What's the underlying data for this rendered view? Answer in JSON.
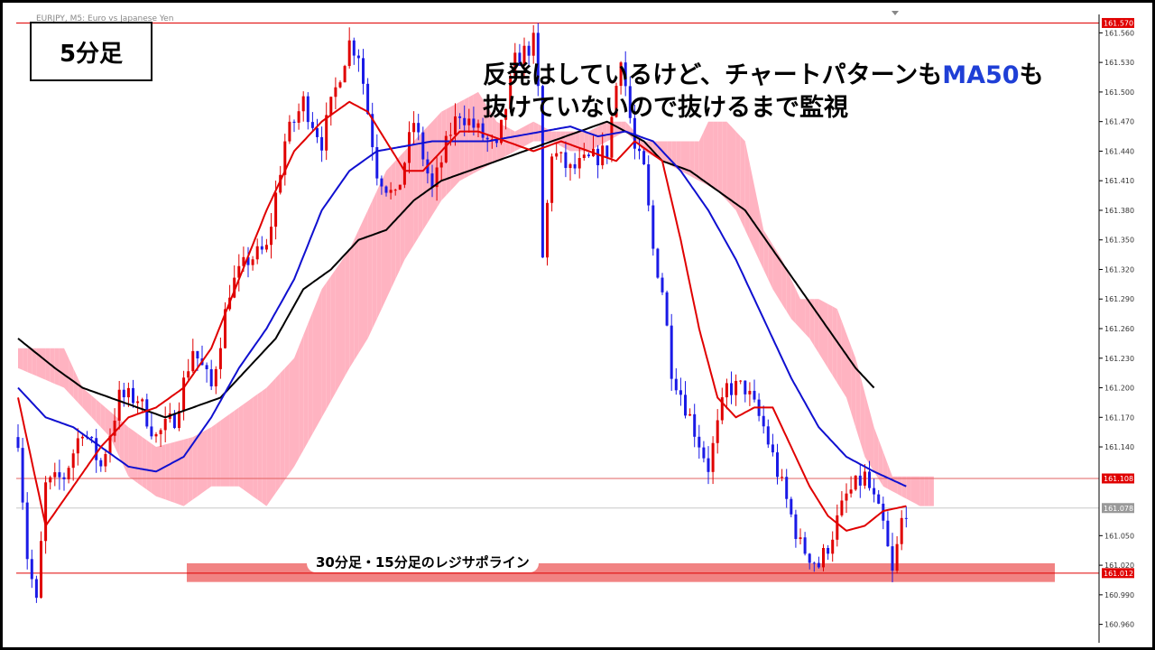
{
  "timeframe_label": "5分足",
  "symbol_label": "EURJPY, M5: Euro vs Japanese Yen",
  "headline": {
    "line1_before": "反発はしているけど、チャートパターンも",
    "line1_highlight": "MA50",
    "line1_after": "も",
    "line2": "抜けていないので抜けるまで監視"
  },
  "zone_label": "30分足・15分足のレジサポライン",
  "colors": {
    "bull_candle": "#e00000",
    "bear_candle": "#1a1ae6",
    "ma_short": "#e00000",
    "ma_mid": "#1010d0",
    "ma_long": "#000000",
    "cloud_bull": "#ffb3c1",
    "cloud_bear": "#a8e8ec",
    "zone": "#f07575",
    "headline_highlight": "#1f3fd6"
  },
  "chart_data": {
    "type": "candlestick",
    "y_axis": {
      "min": 160.945,
      "max": 161.575,
      "ticks": [
        161.56,
        161.53,
        161.5,
        161.47,
        161.44,
        161.41,
        161.38,
        161.35,
        161.32,
        161.29,
        161.26,
        161.23,
        161.2,
        161.17,
        161.14,
        161.05,
        161.02,
        160.99,
        160.96
      ],
      "tick_decimals": 3
    },
    "price_levels": [
      {
        "label": "161.570",
        "value": 161.57,
        "tag_color": "#e00000",
        "line_color": "#e00000"
      },
      {
        "label": "161.108",
        "value": 161.108,
        "tag_color": "#e00000",
        "line_color": "#e06060"
      },
      {
        "label": "161.078",
        "value": 161.078,
        "tag_color": "#999999",
        "line_color": "#c8c8c8"
      },
      {
        "label": "161.012",
        "value": 161.012,
        "tag_color": "#e00000",
        "line_color": "#e00000"
      }
    ],
    "support_zone": {
      "low": 161.003,
      "high": 161.022
    },
    "candle_anchors": [
      [
        0,
        161.15
      ],
      [
        2,
        161.03
      ],
      [
        4,
        160.98
      ],
      [
        6,
        161.1
      ],
      [
        10,
        161.11
      ],
      [
        14,
        161.16
      ],
      [
        18,
        161.12
      ],
      [
        22,
        161.19
      ],
      [
        26,
        161.19
      ],
      [
        30,
        161.15
      ],
      [
        34,
        161.17
      ],
      [
        38,
        161.24
      ],
      [
        42,
        161.2
      ],
      [
        46,
        161.3
      ],
      [
        50,
        161.33
      ],
      [
        54,
        161.34
      ],
      [
        58,
        161.45
      ],
      [
        62,
        161.49
      ],
      [
        66,
        161.45
      ],
      [
        70,
        161.52
      ],
      [
        72,
        161.55
      ],
      [
        74,
        161.54
      ],
      [
        76,
        161.48
      ],
      [
        78,
        161.42
      ],
      [
        82,
        161.39
      ],
      [
        86,
        161.47
      ],
      [
        90,
        161.4
      ],
      [
        94,
        161.46
      ],
      [
        96,
        161.48
      ],
      [
        100,
        161.46
      ],
      [
        104,
        161.44
      ],
      [
        108,
        161.53
      ],
      [
        112,
        161.55
      ],
      [
        113,
        161.5
      ],
      [
        114,
        161.33
      ],
      [
        116,
        161.44
      ],
      [
        120,
        161.42
      ],
      [
        124,
        161.43
      ],
      [
        128,
        161.44
      ],
      [
        131,
        161.54
      ],
      [
        134,
        161.44
      ],
      [
        136,
        161.42
      ],
      [
        138,
        161.34
      ],
      [
        140,
        161.3
      ],
      [
        142,
        161.22
      ],
      [
        146,
        161.17
      ],
      [
        150,
        161.12
      ],
      [
        154,
        161.2
      ],
      [
        158,
        161.2
      ],
      [
        162,
        161.16
      ],
      [
        166,
        161.1
      ],
      [
        170,
        161.04
      ],
      [
        174,
        161.02
      ],
      [
        176,
        161.04
      ],
      [
        180,
        161.09
      ],
      [
        184,
        161.11
      ],
      [
        188,
        161.06
      ],
      [
        190,
        161.01
      ],
      [
        192,
        161.065
      ],
      [
        193,
        161.078
      ]
    ],
    "ma_short": [
      [
        0,
        161.19
      ],
      [
        6,
        161.06
      ],
      [
        12,
        161.1
      ],
      [
        18,
        161.14
      ],
      [
        24,
        161.17
      ],
      [
        30,
        161.18
      ],
      [
        36,
        161.2
      ],
      [
        42,
        161.24
      ],
      [
        48,
        161.31
      ],
      [
        54,
        161.38
      ],
      [
        60,
        161.44
      ],
      [
        66,
        161.47
      ],
      [
        72,
        161.49
      ],
      [
        76,
        161.48
      ],
      [
        80,
        161.45
      ],
      [
        84,
        161.42
      ],
      [
        88,
        161.42
      ],
      [
        92,
        161.44
      ],
      [
        96,
        161.46
      ],
      [
        100,
        161.46
      ],
      [
        106,
        161.45
      ],
      [
        112,
        161.44
      ],
      [
        118,
        161.45
      ],
      [
        124,
        161.44
      ],
      [
        130,
        161.43
      ],
      [
        134,
        161.45
      ],
      [
        140,
        161.43
      ],
      [
        144,
        161.35
      ],
      [
        148,
        161.26
      ],
      [
        152,
        161.19
      ],
      [
        156,
        161.17
      ],
      [
        160,
        161.18
      ],
      [
        164,
        161.18
      ],
      [
        168,
        161.14
      ],
      [
        172,
        161.1
      ],
      [
        176,
        161.07
      ],
      [
        180,
        161.055
      ],
      [
        184,
        161.06
      ],
      [
        188,
        161.075
      ],
      [
        193,
        161.08
      ]
    ],
    "ma_mid": [
      [
        0,
        161.2
      ],
      [
        6,
        161.17
      ],
      [
        12,
        161.16
      ],
      [
        18,
        161.14
      ],
      [
        24,
        161.12
      ],
      [
        30,
        161.115
      ],
      [
        36,
        161.13
      ],
      [
        42,
        161.17
      ],
      [
        48,
        161.22
      ],
      [
        54,
        161.26
      ],
      [
        60,
        161.31
      ],
      [
        66,
        161.38
      ],
      [
        72,
        161.42
      ],
      [
        78,
        161.44
      ],
      [
        84,
        161.445
      ],
      [
        90,
        161.45
      ],
      [
        96,
        161.45
      ],
      [
        102,
        161.45
      ],
      [
        108,
        161.455
      ],
      [
        114,
        161.46
      ],
      [
        120,
        161.465
      ],
      [
        126,
        161.455
      ],
      [
        132,
        161.46
      ],
      [
        138,
        161.45
      ],
      [
        144,
        161.42
      ],
      [
        150,
        161.38
      ],
      [
        156,
        161.33
      ],
      [
        162,
        161.27
      ],
      [
        168,
        161.21
      ],
      [
        174,
        161.16
      ],
      [
        180,
        161.13
      ],
      [
        186,
        161.115
      ],
      [
        193,
        161.1
      ]
    ],
    "ma_long": [
      [
        0,
        161.25
      ],
      [
        8,
        161.22
      ],
      [
        14,
        161.2
      ],
      [
        20,
        161.19
      ],
      [
        26,
        161.18
      ],
      [
        32,
        161.17
      ],
      [
        38,
        161.18
      ],
      [
        44,
        161.19
      ],
      [
        50,
        161.22
      ],
      [
        56,
        161.25
      ],
      [
        62,
        161.3
      ],
      [
        68,
        161.32
      ],
      [
        74,
        161.35
      ],
      [
        80,
        161.36
      ],
      [
        86,
        161.39
      ],
      [
        92,
        161.41
      ],
      [
        98,
        161.42
      ],
      [
        104,
        161.43
      ],
      [
        110,
        161.44
      ],
      [
        116,
        161.45
      ],
      [
        122,
        161.46
      ],
      [
        128,
        161.47
      ],
      [
        132,
        161.46
      ],
      [
        136,
        161.45
      ],
      [
        140,
        161.43
      ],
      [
        146,
        161.42
      ],
      [
        152,
        161.4
      ],
      [
        158,
        161.38
      ],
      [
        164,
        161.34
      ],
      [
        170,
        161.3
      ],
      [
        176,
        161.26
      ],
      [
        182,
        161.22
      ],
      [
        186,
        161.2
      ]
    ],
    "cloud": {
      "x_start": 0,
      "x_end": 199,
      "span_a": [
        [
          0,
          161.24
        ],
        [
          10,
          161.24
        ],
        [
          14,
          161.2
        ],
        [
          24,
          161.16
        ],
        [
          30,
          161.14
        ],
        [
          38,
          161.15
        ],
        [
          42,
          161.16
        ],
        [
          48,
          161.18
        ],
        [
          54,
          161.2
        ],
        [
          60,
          161.23
        ],
        [
          66,
          161.3
        ],
        [
          72,
          161.34
        ],
        [
          76,
          161.38
        ],
        [
          80,
          161.42
        ],
        [
          84,
          161.44
        ],
        [
          88,
          161.46
        ],
        [
          92,
          161.48
        ],
        [
          96,
          161.49
        ],
        [
          100,
          161.5
        ],
        [
          104,
          161.47
        ],
        [
          108,
          161.46
        ],
        [
          112,
          161.47
        ],
        [
          116,
          161.46
        ],
        [
          120,
          161.46
        ],
        [
          124,
          161.46
        ],
        [
          128,
          161.47
        ],
        [
          132,
          161.47
        ],
        [
          136,
          161.45
        ],
        [
          140,
          161.45
        ],
        [
          144,
          161.45
        ],
        [
          148,
          161.45
        ],
        [
          150,
          161.47
        ],
        [
          154,
          161.47
        ],
        [
          158,
          161.45
        ],
        [
          162,
          161.36
        ],
        [
          166,
          161.33
        ],
        [
          170,
          161.29
        ],
        [
          174,
          161.29
        ],
        [
          178,
          161.28
        ],
        [
          182,
          161.23
        ],
        [
          186,
          161.16
        ],
        [
          190,
          161.11
        ],
        [
          194,
          161.11
        ],
        [
          199,
          161.11
        ]
      ],
      "span_b": [
        [
          0,
          161.22
        ],
        [
          10,
          161.2
        ],
        [
          14,
          161.18
        ],
        [
          20,
          161.15
        ],
        [
          24,
          161.11
        ],
        [
          30,
          161.09
        ],
        [
          36,
          161.08
        ],
        [
          42,
          161.1
        ],
        [
          48,
          161.1
        ],
        [
          54,
          161.08
        ],
        [
          60,
          161.12
        ],
        [
          66,
          161.17
        ],
        [
          72,
          161.22
        ],
        [
          76,
          161.25
        ],
        [
          80,
          161.29
        ],
        [
          84,
          161.33
        ],
        [
          88,
          161.36
        ],
        [
          92,
          161.39
        ],
        [
          96,
          161.41
        ],
        [
          100,
          161.42
        ],
        [
          104,
          161.43
        ],
        [
          108,
          161.44
        ],
        [
          112,
          161.45
        ],
        [
          116,
          161.45
        ],
        [
          120,
          161.44
        ],
        [
          124,
          161.44
        ],
        [
          128,
          161.45
        ],
        [
          132,
          161.46
        ],
        [
          136,
          161.44
        ],
        [
          140,
          161.43
        ],
        [
          144,
          161.42
        ],
        [
          148,
          161.41
        ],
        [
          152,
          161.4
        ],
        [
          156,
          161.38
        ],
        [
          160,
          161.34
        ],
        [
          164,
          161.3
        ],
        [
          168,
          161.27
        ],
        [
          172,
          161.25
        ],
        [
          176,
          161.22
        ],
        [
          180,
          161.19
        ],
        [
          184,
          161.13
        ],
        [
          188,
          161.1
        ],
        [
          192,
          161.09
        ],
        [
          196,
          161.08
        ],
        [
          199,
          161.08
        ]
      ]
    }
  }
}
